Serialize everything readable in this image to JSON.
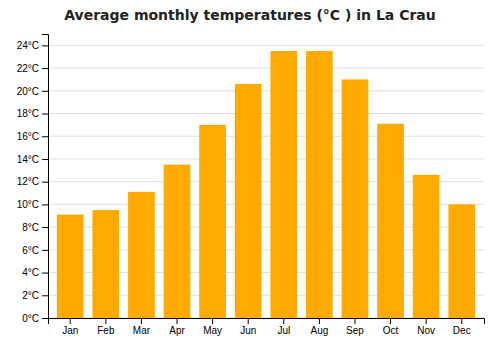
{
  "chart_data": {
    "type": "bar",
    "title": "Average monthly temperatures (°C ) in La Crau",
    "categories": [
      "Jan",
      "Feb",
      "Mar",
      "Apr",
      "May",
      "Jun",
      "Jul",
      "Aug",
      "Sep",
      "Oct",
      "Nov",
      "Dec"
    ],
    "values": [
      9.1,
      9.5,
      11.1,
      13.5,
      17.0,
      20.6,
      23.5,
      23.5,
      21.0,
      17.1,
      12.6,
      10.0
    ],
    "color": "#FFAA00",
    "ylim": [
      0,
      25
    ],
    "yticks": [
      {
        "value": 0,
        "label": "0°C"
      },
      {
        "value": 2,
        "label": "2°C"
      },
      {
        "value": 4,
        "label": "4°C"
      },
      {
        "value": 6,
        "label": "6°C"
      },
      {
        "value": 8,
        "label": "8°C"
      },
      {
        "value": 10,
        "label": "10°C"
      },
      {
        "value": 12,
        "label": "12°C"
      },
      {
        "value": 14,
        "label": "14°C"
      },
      {
        "value": 16,
        "label": "16°C"
      },
      {
        "value": 18,
        "label": "18°C"
      },
      {
        "value": 20,
        "label": "20°C"
      },
      {
        "value": 22,
        "label": "22°C"
      },
      {
        "value": 24,
        "label": "24°C"
      }
    ],
    "grid": true
  }
}
